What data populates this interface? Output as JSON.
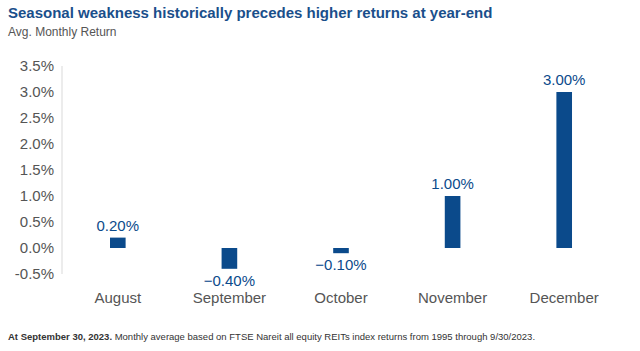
{
  "chart_data": {
    "type": "bar",
    "title": "Seasonal weakness historically precedes higher returns at year-end",
    "subtitle": "Avg. Monthly Return",
    "annotations": [
      "At September 30, 2023.",
      "Monthly average based on FTSE Nareit all equity REITs index returns from 1995 through 9/30/2023."
    ],
    "categories": [
      "August",
      "September",
      "October",
      "November",
      "December"
    ],
    "values": [
      0.2,
      -0.4,
      -0.1,
      1.0,
      3.0
    ],
    "value_labels": [
      "0.20%",
      "−0.40%",
      "−0.10%",
      "1.00%",
      "3.00%"
    ],
    "color": "#0b4a8b",
    "ylim": [
      -0.5,
      3.5
    ],
    "yticks": [
      {
        "value": -0.5,
        "label": "-0.5%"
      },
      {
        "value": 0,
        "label": "0.0%"
      },
      {
        "value": 0.5,
        "label": "0.5%"
      },
      {
        "value": 1.0,
        "label": "1.0%"
      },
      {
        "value": 1.5,
        "label": "1.5%"
      },
      {
        "value": 2.0,
        "label": "2.0%"
      },
      {
        "value": 2.5,
        "label": "2.5%"
      },
      {
        "value": 3.0,
        "label": "3.0%"
      },
      {
        "value": 3.5,
        "label": "3.5%"
      }
    ],
    "grid": false,
    "data_labels": true
  }
}
